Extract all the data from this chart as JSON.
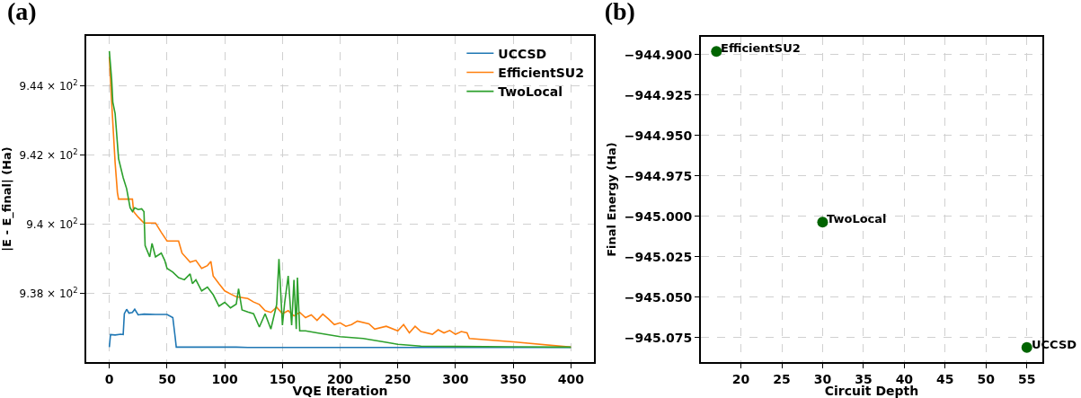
{
  "chart_data": [
    {
      "type": "line",
      "title": "(a)",
      "xlabel": "VQE Iteration",
      "ylabel": "|E - E_final| (Ha)",
      "log": true,
      "grid": true,
      "legend": "top right",
      "marker": "none",
      "line_style": "solid",
      "xlim": [
        -20,
        420
      ],
      "xticks": [
        0,
        50,
        100,
        150,
        200,
        250,
        300,
        350,
        400
      ],
      "ylim": [
        936.02,
        945.45
      ],
      "yticks": [
        {
          "value": 938,
          "label": "9.38 × 10$^{2}$"
        },
        {
          "value": 940,
          "label": "9.4 × 10$^{2}$"
        },
        {
          "value": 942,
          "label": "9.42 × 10$^{2}$"
        },
        {
          "value": 944,
          "label": "9.44 × 10$^{2}$"
        }
      ],
      "series": [
        {
          "name": "UCCSD",
          "color": "#1f77b4",
          "x": [
            0,
            1,
            5,
            10,
            12,
            13,
            15,
            17,
            20,
            22,
            25,
            30,
            40,
            50,
            55,
            57,
            58,
            60,
            100,
            110,
            120,
            200,
            300,
            400
          ],
          "values": [
            936.45,
            936.81,
            936.8,
            936.82,
            936.81,
            937.41,
            937.54,
            937.43,
            937.45,
            937.54,
            937.38,
            937.4,
            937.39,
            937.39,
            937.3,
            936.75,
            936.45,
            936.45,
            936.45,
            936.45,
            936.44,
            936.44,
            936.44,
            936.44
          ]
        },
        {
          "name": "EfficientSU2",
          "color": "#ff7f0e",
          "x": [
            0,
            2,
            5,
            7,
            8,
            20,
            21,
            25,
            30,
            40,
            45,
            50,
            60,
            63,
            70,
            75,
            80,
            85,
            88,
            90,
            95,
            100,
            110,
            120,
            125,
            130,
            135,
            140,
            145,
            150,
            155,
            160,
            165,
            170,
            175,
            180,
            185,
            190,
            195,
            200,
            205,
            210,
            215,
            225,
            230,
            240,
            250,
            255,
            260,
            265,
            270,
            280,
            285,
            290,
            295,
            300,
            305,
            310,
            312,
            350,
            400
          ],
          "values": [
            944.84,
            943.53,
            941.78,
            940.91,
            940.72,
            940.72,
            940.36,
            940.2,
            940.03,
            940.03,
            939.76,
            939.51,
            939.51,
            939.16,
            938.9,
            938.95,
            938.72,
            938.8,
            938.92,
            938.5,
            938.28,
            938.07,
            937.9,
            937.85,
            937.75,
            937.68,
            937.5,
            937.45,
            937.6,
            937.41,
            937.5,
            937.35,
            937.45,
            937.3,
            937.38,
            937.22,
            937.4,
            937.26,
            937.1,
            937.15,
            937.05,
            937.1,
            937.2,
            937.12,
            936.97,
            937.05,
            936.92,
            937.1,
            936.86,
            937.05,
            936.9,
            936.82,
            936.95,
            936.86,
            936.93,
            936.82,
            936.9,
            936.86,
            936.7,
            936.6,
            936.45
          ]
        },
        {
          "name": "TwoLocal",
          "color": "#2ca02c",
          "x": [
            0,
            2,
            3,
            5,
            8,
            12,
            15,
            18,
            20,
            22,
            25,
            28,
            30,
            31,
            35,
            37,
            40,
            45,
            48,
            50,
            55,
            60,
            65,
            70,
            72,
            75,
            80,
            85,
            90,
            95,
            100,
            105,
            110,
            112,
            115,
            120,
            125,
            130,
            135,
            140,
            145,
            147,
            150,
            152,
            155,
            158,
            160,
            162,
            163,
            165,
            170,
            180,
            200,
            220,
            240,
            250,
            270,
            300,
            350,
            400
          ],
          "values": [
            945.01,
            944.19,
            943.53,
            943.2,
            941.89,
            941.34,
            941.02,
            940.47,
            940.36,
            940.47,
            940.42,
            940.44,
            940.36,
            939.38,
            939.05,
            939.44,
            939.05,
            939.16,
            938.95,
            938.72,
            938.61,
            938.45,
            938.39,
            938.56,
            938.28,
            938.39,
            938.07,
            938.18,
            937.96,
            937.63,
            937.74,
            937.58,
            937.69,
            938.13,
            937.52,
            937.46,
            937.41,
            937.03,
            937.41,
            936.97,
            937.68,
            938.99,
            937.08,
            937.74,
            938.5,
            937.08,
            938.39,
            936.97,
            938.45,
            936.92,
            936.92,
            936.86,
            936.75,
            936.7,
            936.59,
            936.53,
            936.48,
            936.47,
            936.46,
            936.45
          ]
        }
      ]
    },
    {
      "type": "scatter",
      "title": "(b)",
      "xlabel": "Circuit Depth",
      "ylabel": "Final Energy (Ha)",
      "grid": true,
      "legend": false,
      "marker": "circle",
      "xlim": [
        15.1,
        56.9
      ],
      "xticks": [
        20,
        25,
        30,
        35,
        40,
        45,
        50,
        55
      ],
      "ylim": [
        -945.09,
        -944.889
      ],
      "yticks": [
        {
          "value": -945.075,
          "label": "−945.075"
        },
        {
          "value": -945.05,
          "label": "−945.050"
        },
        {
          "value": -945.025,
          "label": "−945.025"
        },
        {
          "value": -945.0,
          "label": "−945.000"
        },
        {
          "value": -944.975,
          "label": "−944.975"
        },
        {
          "value": -944.95,
          "label": "−944.950"
        },
        {
          "value": -944.925,
          "label": "−944.925"
        },
        {
          "value": -944.9,
          "label": "−944.900"
        }
      ],
      "x": [
        17,
        30,
        55
      ],
      "series": [
        {
          "color": "#006400",
          "values": [
            -944.898,
            -945.0035,
            -945.081
          ]
        }
      ],
      "annotations": [
        {
          "text": "EfficientSU2",
          "x": 17,
          "y": -944.898
        },
        {
          "text": "TwoLocal",
          "x": 30,
          "y": -945.0035
        },
        {
          "text": "UCCSD",
          "x": 55,
          "y": -945.081
        }
      ]
    }
  ]
}
